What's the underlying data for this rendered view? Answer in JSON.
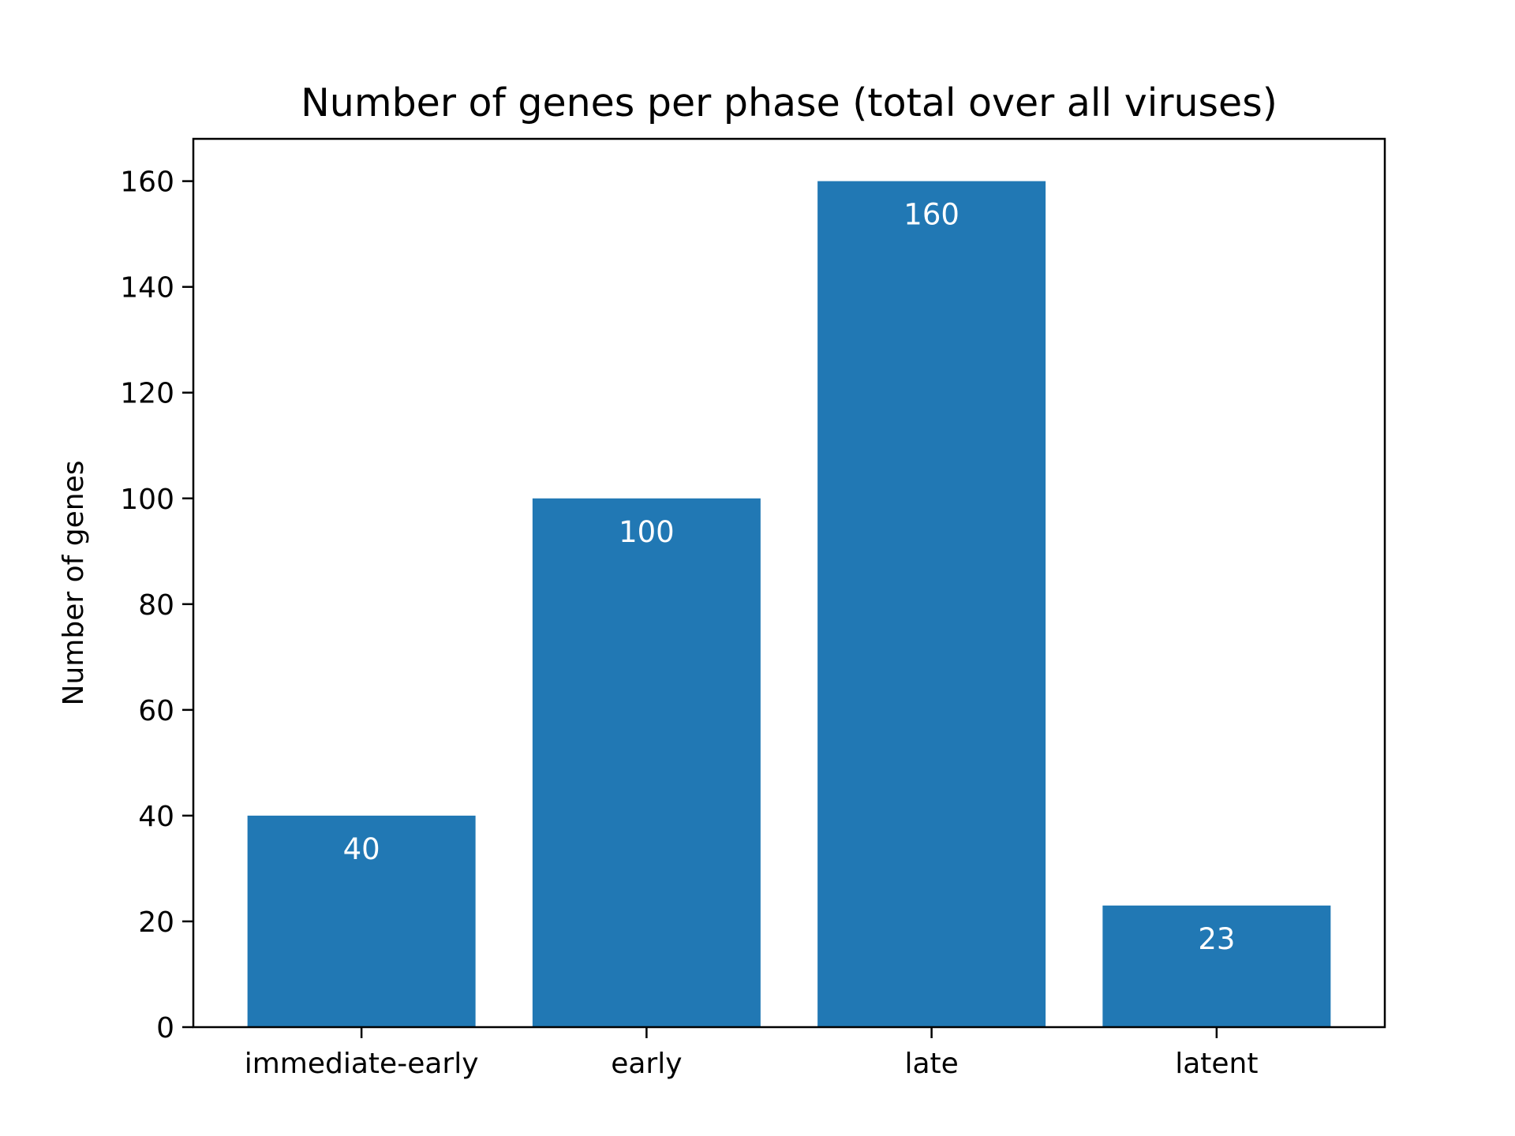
{
  "chart_data": {
    "type": "bar",
    "title": "Number of genes per phase (total over all viruses)",
    "xlabel": "",
    "ylabel": "Number of genes",
    "categories": [
      "immediate-early",
      "early",
      "late",
      "latent"
    ],
    "values": [
      40,
      100,
      160,
      23
    ],
    "data_labels": [
      "40",
      "100",
      "160",
      "23"
    ],
    "ylim": [
      0,
      168
    ],
    "yticks": [
      0,
      20,
      40,
      60,
      80,
      100,
      120,
      140,
      160
    ],
    "ytick_labels": [
      "0",
      "20",
      "40",
      "60",
      "80",
      "100",
      "120",
      "140",
      "160"
    ],
    "grid": false,
    "legend": "none",
    "bar_color": "#2178b4",
    "label_color": "#ffffff"
  }
}
